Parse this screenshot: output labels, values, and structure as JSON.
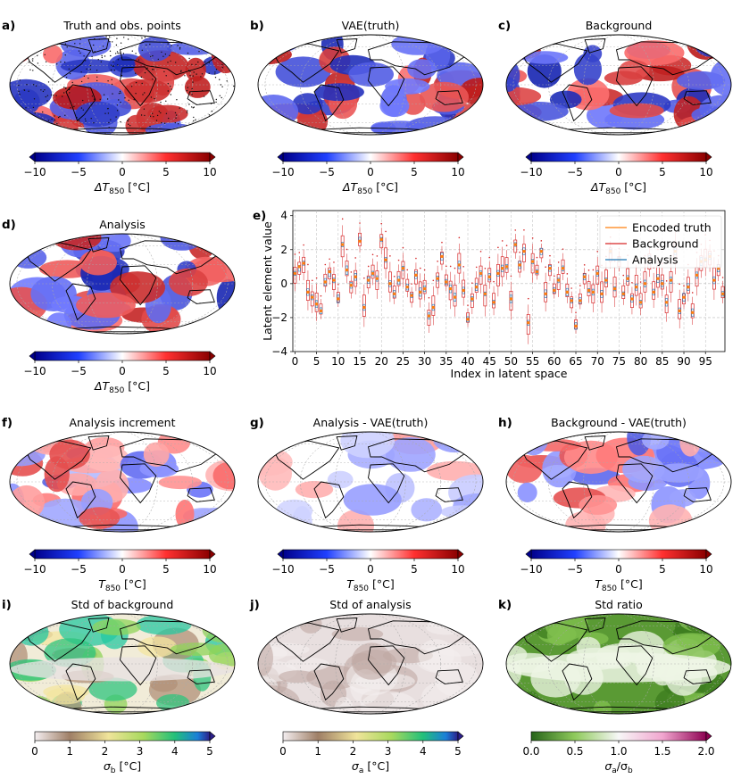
{
  "panels": [
    {
      "letter": "a)",
      "title": "Truth and obs. points",
      "kind": "anom",
      "obs": true,
      "seed": 11
    },
    {
      "letter": "b)",
      "title": "VAE(truth)",
      "kind": "anom",
      "seed": 23
    },
    {
      "letter": "c)",
      "title": "Background",
      "kind": "anom",
      "seed": 31
    },
    {
      "letter": "d)",
      "title": "Analysis",
      "kind": "anom",
      "seed": 47
    },
    {
      "letter": "f)",
      "title": "Analysis increment",
      "kind": "inc",
      "seed": 53
    },
    {
      "letter": "g)",
      "title": "Analysis - VAE(truth)",
      "kind": "diff",
      "seed": 61
    },
    {
      "letter": "h)",
      "title": "Background - VAE(truth)",
      "kind": "inc",
      "seed": 71
    },
    {
      "letter": "i)",
      "title": "Std of background",
      "kind": "stdb",
      "seed": 83
    },
    {
      "letter": "j)",
      "title": "Std of analysis",
      "kind": "stda",
      "seed": 89
    },
    {
      "letter": "k)",
      "title": "Std ratio",
      "kind": "ratio",
      "seed": 97
    }
  ],
  "colorbars": [
    {
      "panel": "a)",
      "type": "div",
      "ticks": [
        "−10",
        "−5",
        "0",
        "5",
        "10"
      ],
      "label": "ΔT850 [°C]",
      "label_main": "ΔT",
      "label_sub": "850",
      "label_unit": " [°C]"
    },
    {
      "panel": "b)",
      "type": "div",
      "ticks": [
        "−10",
        "−5",
        "0",
        "5",
        "10"
      ],
      "label": "ΔT850 [°C]",
      "label_main": "ΔT",
      "label_sub": "850",
      "label_unit": " [°C]"
    },
    {
      "panel": "c)",
      "type": "div",
      "ticks": [
        "−10",
        "−5",
        "0",
        "5",
        "10"
      ],
      "label": "ΔT850 [°C]",
      "label_main": "ΔT",
      "label_sub": "850",
      "label_unit": " [°C]"
    },
    {
      "panel": "d)",
      "type": "div",
      "ticks": [
        "−10",
        "−5",
        "0",
        "5",
        "10"
      ],
      "label": "ΔT850 [°C]",
      "label_main": "ΔT",
      "label_sub": "850",
      "label_unit": " [°C]"
    },
    {
      "panel": "f)",
      "type": "div",
      "ticks": [
        "−10",
        "−5",
        "0",
        "5",
        "10"
      ],
      "label": "T850 [°C]",
      "label_main": "T",
      "label_sub": "850",
      "label_unit": " [°C]"
    },
    {
      "panel": "g)",
      "type": "div",
      "ticks": [
        "−10",
        "−5",
        "0",
        "5",
        "10"
      ],
      "label": "T850 [°C]",
      "label_main": "T",
      "label_sub": "850",
      "label_unit": " [°C]"
    },
    {
      "panel": "h)",
      "type": "div",
      "ticks": [
        "−10",
        "−5",
        "0",
        "5",
        "10"
      ],
      "label": "T850 [°C]",
      "label_main": "T",
      "label_sub": "850",
      "label_unit": " [°C]"
    },
    {
      "panel": "i)",
      "type": "std",
      "ticks": [
        "0",
        "1",
        "2",
        "3",
        "4",
        "5"
      ],
      "label": "σb [°C]",
      "label_main": "σ",
      "label_sub": "b",
      "label_unit": " [°C]"
    },
    {
      "panel": "j)",
      "type": "std",
      "ticks": [
        "0",
        "1",
        "2",
        "3",
        "4",
        "5"
      ],
      "label": "σa [°C]",
      "label_main": "σ",
      "label_sub": "a",
      "label_unit": " [°C]"
    },
    {
      "panel": "k)",
      "type": "ratio",
      "ticks": [
        "0.0",
        "0.5",
        "1.0",
        "1.5",
        "2.0"
      ],
      "label": "σa/σb",
      "label_main": "σ",
      "label_sub": "a",
      "label_unit": "/σ",
      "label_sub2": "b"
    }
  ],
  "colors": {
    "encoded_truth": "#ff7f0e",
    "background": "#d62728",
    "analysis": "#1f77b4"
  },
  "chart_data": {
    "panel_letter": "e)",
    "type": "box",
    "title": "",
    "xlabel": "Index in latent space",
    "ylabel": "Latent element value",
    "xlim": [
      -0.5,
      99.5
    ],
    "ylim": [
      -4,
      4.3
    ],
    "xticks": [
      0,
      5,
      10,
      15,
      20,
      25,
      30,
      35,
      40,
      45,
      50,
      55,
      60,
      65,
      70,
      75,
      80,
      85,
      90,
      95
    ],
    "yticks": [
      -4,
      -2,
      0,
      2,
      4
    ],
    "ytick_labels": [
      "−4",
      "−2",
      "0",
      "2",
      "4"
    ],
    "legend": [
      "Encoded truth",
      "Background",
      "Analysis"
    ],
    "legend_position": "top-right",
    "encoded_truth": [
      0.6,
      1.0,
      1.2,
      -0.5,
      -0.8,
      -1.2,
      -1.6,
      0.1,
      0.7,
      0.2,
      -0.9,
      2.3,
      0.8,
      -0.1,
      0.4,
      2.5,
      -1.4,
      0.2,
      0.6,
      0.3,
      2.6,
      1.4,
      0.0,
      -0.6,
      0.2,
      0.9,
      -0.2,
      -0.7,
      0.5,
      -0.5,
      -0.3,
      -1.9,
      -1.4,
      0.3,
      1.6,
      0.1,
      -0.3,
      -0.8,
      1.1,
      -0.4,
      -2.1,
      -0.9,
      -0.2,
      0.6,
      -0.6,
      0.4,
      -1.1,
      0.6,
      0.9,
      1.0,
      -0.9,
      2.3,
      1.1,
      1.9,
      -2.3,
      1.3,
      0.7,
      1.9,
      -0.6,
      0.9,
      -0.4,
      0.2,
      0.9,
      -0.5,
      -1.0,
      -2.5,
      -1.0,
      0.4,
      -0.4,
      -0.5,
      0.6,
      -0.6,
      0.2,
      1.9,
      -0.3,
      1.4,
      -0.6,
      0.3,
      -0.9,
      -0.2,
      -1.1,
      0.0,
      1.4,
      -0.5,
      0.3,
      0.0,
      -1.1,
      0.2,
      1.9,
      -1.6,
      -0.8,
      -0.2,
      -1.7,
      0.5,
      1.3,
      1.4,
      1.6,
      0.2,
      0.9,
      -0.6
    ],
    "background": [
      0.5,
      0.9,
      1.1,
      -0.4,
      -0.9,
      -1.1,
      -1.5,
      0.2,
      0.6,
      0.1,
      -0.8,
      2.2,
      0.9,
      -0.2,
      0.3,
      2.6,
      -1.3,
      0.1,
      0.7,
      0.2,
      2.5,
      1.5,
      0.1,
      -0.5,
      0.3,
      0.8,
      -0.1,
      -0.8,
      0.4,
      -0.4,
      -0.2,
      -2.0,
      -1.3,
      0.2,
      1.5,
      0.2,
      -0.4,
      -0.7,
      1.2,
      -0.3,
      -2.0,
      -1.0,
      -0.1,
      0.5,
      -0.7,
      0.5,
      -1.0,
      0.5,
      1.0,
      1.1,
      -1.0,
      2.2,
      1.0,
      1.8,
      -2.4,
      1.2,
      0.8,
      1.8,
      -0.5,
      0.8,
      -0.3,
      0.1,
      1.0,
      -0.4,
      -1.1,
      -2.4,
      -0.9,
      0.3,
      -0.3,
      -0.6,
      0.5,
      -0.5,
      0.3,
      1.7,
      -0.2,
      1.3,
      -0.5,
      0.4,
      -1.0,
      -0.1,
      -1.0,
      0.1,
      1.3,
      -0.4,
      0.4,
      0.1,
      -1.2,
      0.1,
      1.8,
      -1.5,
      -0.9,
      -0.1,
      -1.6,
      0.4,
      1.2,
      1.5,
      1.5,
      0.3,
      0.8,
      -0.5
    ],
    "analysis": [
      0.6,
      0.9,
      1.2,
      -0.5,
      -0.8,
      -1.2,
      -1.6,
      0.1,
      0.6,
      0.2,
      -0.9,
      2.3,
      0.8,
      -0.1,
      0.4,
      2.6,
      -1.4,
      0.2,
      0.6,
      0.3,
      2.6,
      1.4,
      0.0,
      -0.6,
      0.2,
      0.9,
      -0.2,
      -0.7,
      0.5,
      -0.5,
      -0.3,
      -1.9,
      -1.4,
      0.3,
      1.6,
      0.1,
      -0.3,
      -0.8,
      1.1,
      -0.4,
      -2.1,
      -0.9,
      -0.2,
      0.6,
      -0.6,
      0.4,
      -1.1,
      0.6,
      0.9,
      1.0,
      -0.9,
      2.3,
      1.1,
      1.9,
      -2.3,
      1.3,
      0.7,
      1.9,
      -0.6,
      0.9,
      -0.4,
      0.2,
      0.9,
      -0.5,
      -1.0,
      -2.5,
      -1.0,
      0.4,
      -0.4,
      -0.5,
      0.6,
      -0.6,
      0.2,
      1.9,
      -0.3,
      1.4,
      -0.6,
      0.3,
      -0.9,
      -0.2,
      -1.1,
      0.0,
      1.4,
      -0.5,
      0.3,
      0.0,
      -1.1,
      0.2,
      1.9,
      -1.6,
      -0.8,
      -0.2,
      -1.7,
      0.5,
      1.3,
      1.4,
      1.6,
      0.2,
      0.9,
      -0.6
    ],
    "background_spread": 0.45,
    "analysis_spread": 0.18
  }
}
